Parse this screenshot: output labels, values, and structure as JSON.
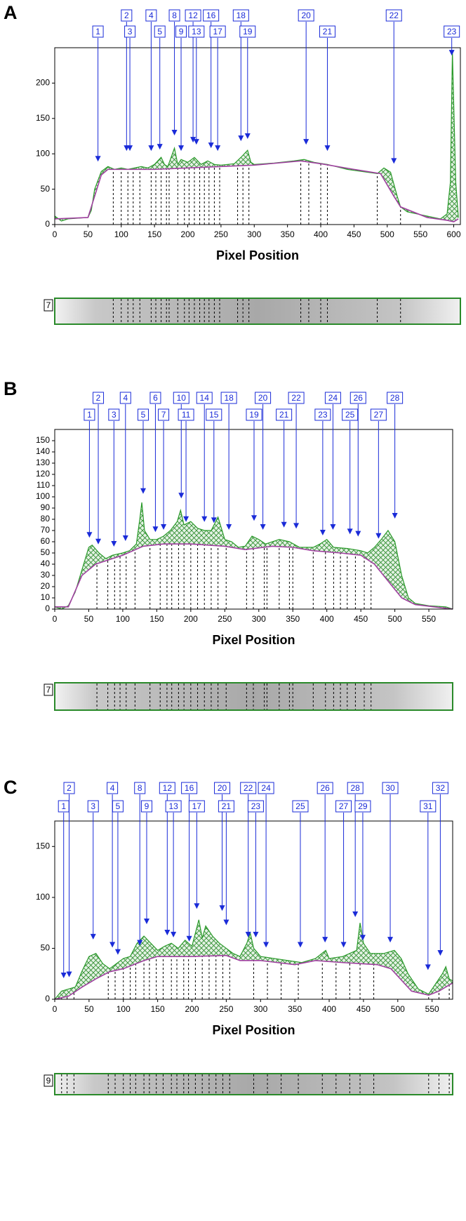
{
  "chart_data": [
    {
      "type": "line",
      "panel": "A",
      "lane": "7",
      "xlabel": "Pixel Position",
      "xlim": [
        0,
        610
      ],
      "ylim": [
        0,
        250
      ],
      "xticks": [
        0,
        50,
        100,
        150,
        200,
        250,
        300,
        350,
        400,
        450,
        500,
        550,
        600
      ],
      "yticks": [
        0,
        50,
        100,
        150,
        200
      ],
      "series": [
        {
          "color": "#2a9a2a",
          "x": [
            0,
            10,
            20,
            50,
            55,
            60,
            70,
            80,
            90,
            100,
            110,
            120,
            130,
            140,
            150,
            160,
            165,
            170,
            180,
            185,
            190,
            200,
            210,
            220,
            230,
            240,
            250,
            270,
            280,
            290,
            295,
            300,
            330,
            360,
            375,
            390,
            410,
            440,
            470,
            485,
            495,
            505,
            515,
            520,
            530,
            560,
            580,
            590,
            595,
            598,
            600,
            603,
            607
          ],
          "values": [
            12,
            5,
            8,
            10,
            20,
            50,
            75,
            82,
            78,
            80,
            78,
            80,
            82,
            80,
            85,
            95,
            85,
            82,
            108,
            85,
            92,
            88,
            95,
            85,
            90,
            85,
            84,
            86,
            95,
            105,
            88,
            85,
            87,
            90,
            92,
            88,
            85,
            78,
            74,
            72,
            80,
            74,
            40,
            25,
            18,
            12,
            8,
            15,
            60,
            245,
            170,
            60,
            10
          ]
        },
        {
          "color": "#a040a0",
          "x": [
            0,
            50,
            60,
            70,
            80,
            100,
            150,
            200,
            250,
            300,
            370,
            400,
            450,
            490,
            510,
            520,
            560,
            590,
            600,
            607
          ],
          "values": [
            8,
            10,
            40,
            70,
            78,
            78,
            78,
            80,
            82,
            84,
            90,
            86,
            78,
            72,
            40,
            25,
            10,
            6,
            4,
            8
          ]
        }
      ],
      "peaks": [
        {
          "label": "1",
          "x": 65,
          "y": 88
        },
        {
          "label": "2",
          "x": 108,
          "y": 103
        },
        {
          "label": "3",
          "x": 113,
          "y": 103
        },
        {
          "label": "4",
          "x": 145,
          "y": 103
        },
        {
          "label": "5",
          "x": 158,
          "y": 105
        },
        {
          "label": "8",
          "x": 180,
          "y": 125
        },
        {
          "label": "9",
          "x": 190,
          "y": 103
        },
        {
          "label": "12",
          "x": 208,
          "y": 115
        },
        {
          "label": "13",
          "x": 213,
          "y": 112
        },
        {
          "label": "16",
          "x": 235,
          "y": 107
        },
        {
          "label": "17",
          "x": 245,
          "y": 103
        },
        {
          "label": "18",
          "x": 280,
          "y": 117
        },
        {
          "label": "19",
          "x": 290,
          "y": 120
        },
        {
          "label": "20",
          "x": 378,
          "y": 112
        },
        {
          "label": "21",
          "x": 410,
          "y": 103
        },
        {
          "label": "22",
          "x": 510,
          "y": 85
        },
        {
          "label": "23",
          "x": 597,
          "y": 238
        }
      ],
      "boundaries": [
        88,
        100,
        110,
        118,
        128,
        145,
        152,
        160,
        168,
        172,
        185,
        195,
        202,
        210,
        218,
        225,
        232,
        240,
        248,
        275,
        283,
        292,
        370,
        382,
        400,
        410,
        485,
        520
      ]
    },
    {
      "type": "line",
      "panel": "B",
      "lane": "7",
      "xlabel": "Pixel Position",
      "xlim": [
        0,
        585
      ],
      "ylim": [
        0,
        160
      ],
      "xticks": [
        0,
        50,
        100,
        150,
        200,
        250,
        300,
        350,
        400,
        450,
        500,
        550
      ],
      "yticks": [
        0,
        10,
        20,
        30,
        40,
        50,
        60,
        70,
        80,
        90,
        100,
        110,
        120,
        130,
        140,
        150
      ],
      "series": [
        {
          "color": "#2a9a2a",
          "x": [
            0,
            10,
            20,
            30,
            40,
            50,
            55,
            65,
            75,
            85,
            100,
            110,
            120,
            125,
            128,
            132,
            140,
            150,
            160,
            170,
            180,
            185,
            190,
            200,
            210,
            220,
            230,
            240,
            245,
            250,
            260,
            270,
            280,
            290,
            300,
            310,
            330,
            345,
            360,
            380,
            390,
            400,
            410,
            430,
            450,
            460,
            470,
            480,
            490,
            500,
            510,
            520,
            530,
            550,
            575,
            585
          ],
          "values": [
            2,
            0,
            3,
            15,
            35,
            55,
            57,
            50,
            45,
            48,
            50,
            52,
            58,
            80,
            95,
            70,
            62,
            62,
            65,
            70,
            78,
            88,
            75,
            78,
            72,
            70,
            70,
            82,
            72,
            62,
            60,
            55,
            56,
            65,
            62,
            58,
            62,
            60,
            55,
            55,
            58,
            62,
            55,
            54,
            52,
            50,
            55,
            62,
            70,
            60,
            30,
            10,
            5,
            3,
            2,
            0
          ]
        },
        {
          "color": "#a040a0",
          "x": [
            0,
            20,
            40,
            60,
            80,
            100,
            130,
            160,
            200,
            250,
            280,
            320,
            350,
            380,
            420,
            450,
            470,
            490,
            510,
            530,
            585
          ],
          "values": [
            2,
            2,
            30,
            40,
            44,
            48,
            56,
            58,
            58,
            56,
            53,
            56,
            55,
            52,
            50,
            48,
            40,
            25,
            10,
            4,
            0
          ]
        }
      ],
      "peaks": [
        {
          "label": "1",
          "x": 51,
          "y": 63
        },
        {
          "label": "2",
          "x": 64,
          "y": 57
        },
        {
          "label": "3",
          "x": 87,
          "y": 55
        },
        {
          "label": "4",
          "x": 104,
          "y": 60
        },
        {
          "label": "5",
          "x": 130,
          "y": 102
        },
        {
          "label": "6",
          "x": 148,
          "y": 68
        },
        {
          "label": "7",
          "x": 160,
          "y": 70
        },
        {
          "label": "10",
          "x": 186,
          "y": 98
        },
        {
          "label": "11",
          "x": 193,
          "y": 77
        },
        {
          "label": "14",
          "x": 220,
          "y": 77
        },
        {
          "label": "15",
          "x": 234,
          "y": 76
        },
        {
          "label": "18",
          "x": 256,
          "y": 70
        },
        {
          "label": "19",
          "x": 293,
          "y": 78
        },
        {
          "label": "20",
          "x": 306,
          "y": 70
        },
        {
          "label": "21",
          "x": 337,
          "y": 72
        },
        {
          "label": "22",
          "x": 355,
          "y": 71
        },
        {
          "label": "23",
          "x": 394,
          "y": 65
        },
        {
          "label": "24",
          "x": 409,
          "y": 70
        },
        {
          "label": "25",
          "x": 434,
          "y": 66
        },
        {
          "label": "26",
          "x": 446,
          "y": 64
        },
        {
          "label": "27",
          "x": 476,
          "y": 62
        },
        {
          "label": "28",
          "x": 500,
          "y": 80
        }
      ],
      "boundaries": [
        62,
        78,
        88,
        96,
        105,
        118,
        140,
        155,
        165,
        172,
        182,
        190,
        200,
        210,
        220,
        230,
        240,
        252,
        282,
        292,
        308,
        312,
        330,
        345,
        350,
        380,
        398,
        410,
        420,
        430,
        442,
        455,
        465
      ]
    },
    {
      "type": "line",
      "panel": "C",
      "lane": "9",
      "xlabel": "Pixel Position",
      "xlim": [
        0,
        580
      ],
      "ylim": [
        0,
        175
      ],
      "xticks": [
        0,
        50,
        100,
        150,
        200,
        250,
        300,
        350,
        400,
        450,
        500,
        550
      ],
      "yticks": [
        0,
        50,
        100,
        150
      ],
      "series": [
        {
          "color": "#2a9a2a",
          "x": [
            0,
            10,
            20,
            30,
            40,
            50,
            60,
            70,
            80,
            90,
            100,
            110,
            120,
            130,
            140,
            150,
            160,
            170,
            180,
            190,
            200,
            210,
            215,
            220,
            230,
            240,
            250,
            260,
            270,
            280,
            285,
            290,
            300,
            320,
            340,
            360,
            380,
            395,
            400,
            420,
            440,
            445,
            450,
            460,
            480,
            495,
            505,
            515,
            530,
            545,
            555,
            565,
            570,
            575,
            580
          ],
          "values": [
            0,
            8,
            10,
            12,
            28,
            42,
            45,
            35,
            30,
            35,
            40,
            42,
            55,
            62,
            55,
            48,
            52,
            55,
            50,
            58,
            52,
            78,
            60,
            72,
            62,
            55,
            50,
            45,
            42,
            55,
            65,
            50,
            42,
            40,
            38,
            36,
            40,
            48,
            40,
            42,
            48,
            75,
            55,
            45,
            45,
            48,
            40,
            25,
            10,
            5,
            15,
            25,
            32,
            20,
            18
          ]
        },
        {
          "color": "#a040a0",
          "x": [
            0,
            20,
            40,
            60,
            80,
            100,
            130,
            150,
            200,
            250,
            270,
            300,
            350,
            380,
            420,
            470,
            490,
            520,
            545,
            560,
            580
          ],
          "values": [
            0,
            3,
            12,
            20,
            27,
            30,
            38,
            42,
            42,
            43,
            38,
            38,
            34,
            38,
            36,
            34,
            30,
            8,
            4,
            8,
            16
          ]
        }
      ],
      "peaks": [
        {
          "label": "1",
          "x": 13,
          "y": 20
        },
        {
          "label": "2",
          "x": 21,
          "y": 21
        },
        {
          "label": "3",
          "x": 56,
          "y": 58
        },
        {
          "label": "4",
          "x": 84,
          "y": 50
        },
        {
          "label": "5",
          "x": 92,
          "y": 43
        },
        {
          "label": "8",
          "x": 124,
          "y": 52
        },
        {
          "label": "9",
          "x": 134,
          "y": 73
        },
        {
          "label": "12",
          "x": 164,
          "y": 62
        },
        {
          "label": "13",
          "x": 173,
          "y": 60
        },
        {
          "label": "16",
          "x": 196,
          "y": 56
        },
        {
          "label": "17",
          "x": 207,
          "y": 88
        },
        {
          "label": "20",
          "x": 244,
          "y": 86
        },
        {
          "label": "21",
          "x": 250,
          "y": 72
        },
        {
          "label": "22",
          "x": 282,
          "y": 60
        },
        {
          "label": "23",
          "x": 293,
          "y": 60
        },
        {
          "label": "24",
          "x": 308,
          "y": 50
        },
        {
          "label": "25",
          "x": 358,
          "y": 50
        },
        {
          "label": "26",
          "x": 394,
          "y": 55
        },
        {
          "label": "27",
          "x": 421,
          "y": 50
        },
        {
          "label": "28",
          "x": 438,
          "y": 80
        },
        {
          "label": "29",
          "x": 449,
          "y": 57
        },
        {
          "label": "30",
          "x": 489,
          "y": 55
        },
        {
          "label": "31",
          "x": 544,
          "y": 28
        },
        {
          "label": "32",
          "x": 562,
          "y": 42
        }
      ],
      "boundaries": [
        10,
        18,
        28,
        78,
        88,
        100,
        110,
        118,
        130,
        138,
        148,
        158,
        170,
        178,
        188,
        195,
        205,
        215,
        225,
        235,
        245,
        255,
        290,
        310,
        330,
        355,
        390,
        410,
        430,
        445,
        465,
        545,
        560,
        575
      ]
    }
  ]
}
